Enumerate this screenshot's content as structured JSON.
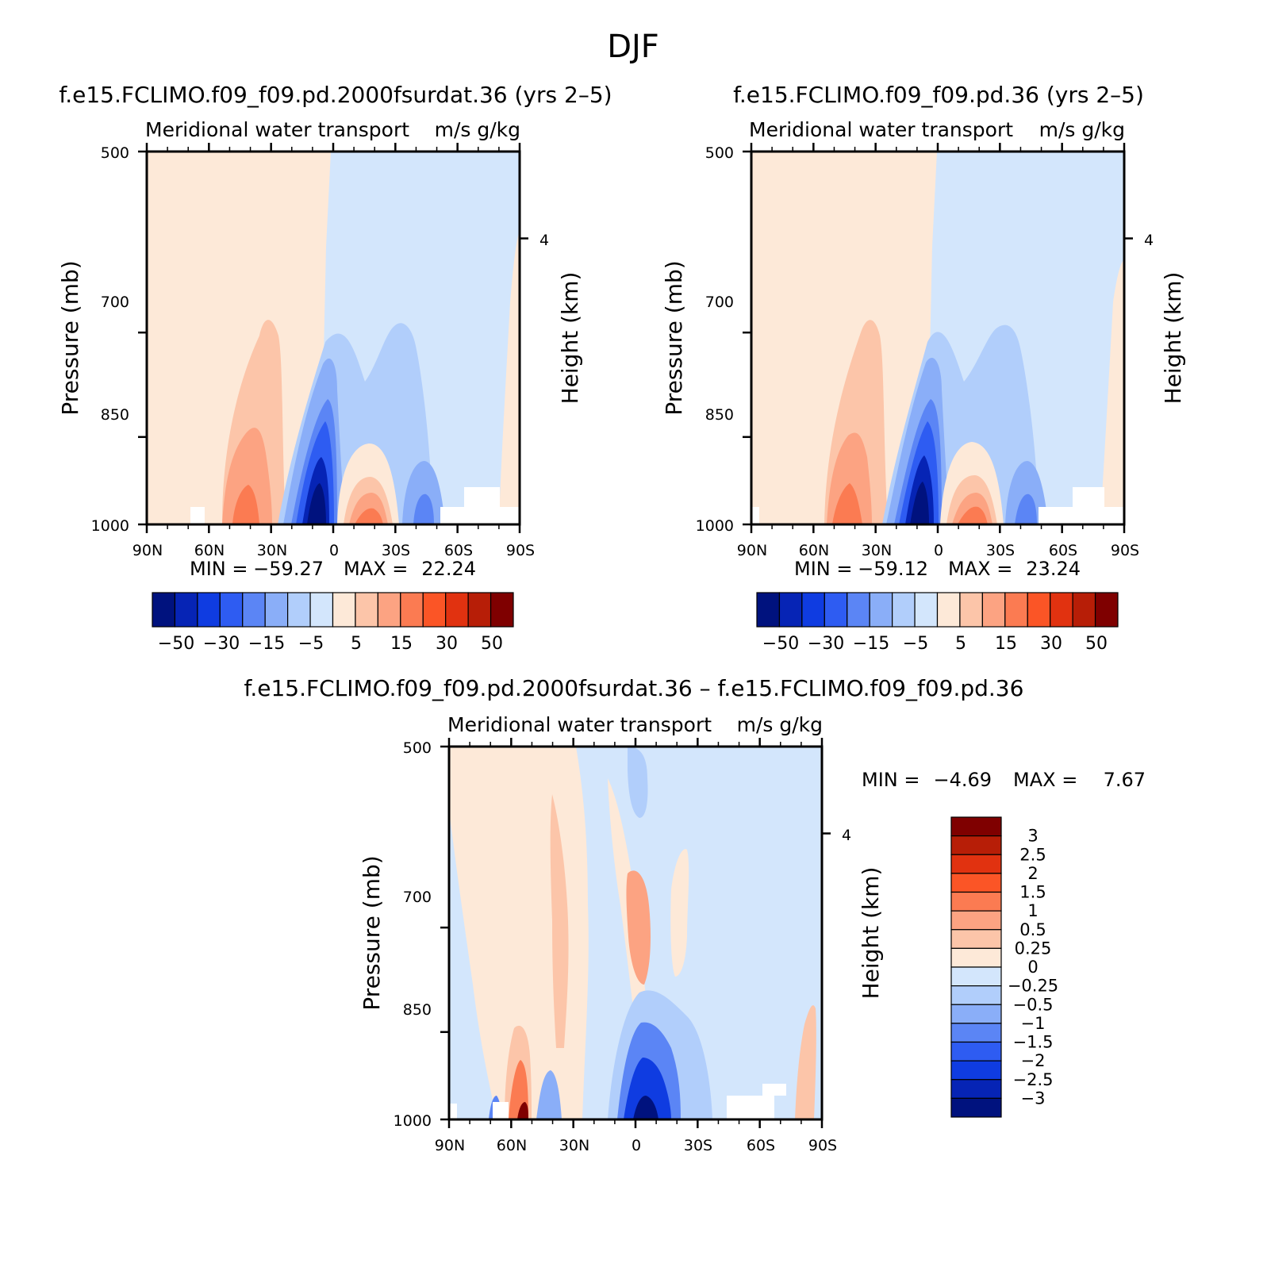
{
  "figure_title": "DJF",
  "colors": {
    "pos": [
      "#fde9d8",
      "#fcc5a9",
      "#fca382",
      "#fb7b52",
      "#fb5526",
      "#e13210",
      "#b71e07",
      "#7f0000"
    ],
    "neg": [
      "#d3e6fc",
      "#b1cefb",
      "#8aaef8",
      "#5b85f5",
      "#2e5cf2",
      "#0f3ce1",
      "#0624b5",
      "#00127e"
    ]
  },
  "chart_data": [
    {
      "type": "heatmap",
      "title": "f.e15.FCLIMO.f09_f09.pd.2000fsurdat.36 (yrs 2–5)",
      "subtitle": "Meridional water transport",
      "units": "m/s g/kg",
      "xlabel": "",
      "ylabel": "Pressure (mb)",
      "ylabel_right": "Height (km)",
      "x_ticks": [
        "90N",
        "60N",
        "30N",
        "0",
        "30S",
        "60S",
        "90S"
      ],
      "y_ticks": [
        "500",
        "700",
        "850",
        "1000"
      ],
      "y_range": [
        500,
        1000
      ],
      "right_ticks": [
        "4"
      ],
      "min_label": "MIN =",
      "min_value": "−59.27",
      "max_label": "MAX =",
      "max_value": "22.24",
      "contour_levels": [
        -50,
        -40,
        -30,
        -20,
        -15,
        -10,
        -5,
        0,
        5,
        10,
        15,
        20,
        30,
        40,
        50
      ],
      "colorbar_labels": [
        "−50",
        "−30",
        "−15",
        "−5",
        "5",
        "15",
        "30",
        "50"
      ]
    },
    {
      "type": "heatmap",
      "title": "f.e15.FCLIMO.f09_f09.pd.36 (yrs 2–5)",
      "subtitle": "Meridional water transport",
      "units": "m/s g/kg",
      "xlabel": "",
      "ylabel": "Pressure (mb)",
      "ylabel_right": "Height (km)",
      "x_ticks": [
        "90N",
        "60N",
        "30N",
        "0",
        "30S",
        "60S",
        "90S"
      ],
      "y_ticks": [
        "500",
        "700",
        "850",
        "1000"
      ],
      "y_range": [
        500,
        1000
      ],
      "right_ticks": [
        "4"
      ],
      "min_label": "MIN =",
      "min_value": "−59.12",
      "max_label": "MAX =",
      "max_value": "23.24",
      "contour_levels": [
        -50,
        -40,
        -30,
        -20,
        -15,
        -10,
        -5,
        0,
        5,
        10,
        15,
        20,
        30,
        40,
        50
      ],
      "colorbar_labels": [
        "−50",
        "−30",
        "−15",
        "−5",
        "5",
        "15",
        "30",
        "50"
      ]
    },
    {
      "type": "heatmap",
      "title": "f.e15.FCLIMO.f09_f09.pd.2000fsurdat.36 – f.e15.FCLIMO.f09_f09.pd.36",
      "subtitle": "Meridional water transport",
      "units": "m/s g/kg",
      "xlabel": "",
      "ylabel": "Pressure (mb)",
      "ylabel_right": "Height (km)",
      "x_ticks": [
        "90N",
        "60N",
        "30N",
        "0",
        "30S",
        "60S",
        "90S"
      ],
      "y_ticks": [
        "500",
        "700",
        "850",
        "1000"
      ],
      "y_range": [
        500,
        1000
      ],
      "right_ticks": [
        "4"
      ],
      "min_label": "MIN =",
      "min_value": "−4.69",
      "max_label": "MAX =",
      "max_value": "7.67",
      "contour_levels": [
        -3,
        -2.5,
        -2,
        -1.5,
        -1,
        -0.5,
        -0.25,
        0,
        0.25,
        0.5,
        1,
        1.5,
        2,
        2.5,
        3
      ],
      "colorbar_labels": [
        "3",
        "2.5",
        "2",
        "1.5",
        "1",
        "0.5",
        "0.25",
        "0",
        "−0.25",
        "−0.5",
        "−1",
        "−1.5",
        "−2",
        "−2.5",
        "−3"
      ]
    }
  ]
}
